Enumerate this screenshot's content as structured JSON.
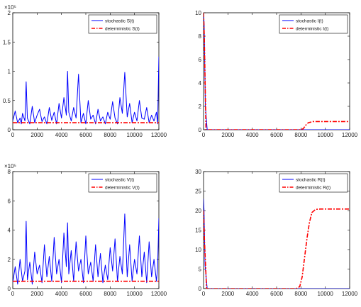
{
  "chart_data": [
    {
      "type": "line",
      "exponent": "×10⁵",
      "xlim": [
        0,
        12000
      ],
      "ylim": [
        0,
        2
      ],
      "xticks": [
        "0",
        "2000",
        "4000",
        "6000",
        "8000",
        "10000",
        "12000"
      ],
      "yticks": [
        "0",
        "0.5",
        "1",
        "1.5",
        "2"
      ],
      "legend_position": "top-right",
      "series": [
        {
          "name": "stochastic S(t)",
          "color": "#0000ff",
          "style": "solid",
          "x": [
            0,
            200,
            400,
            600,
            700,
            800,
            1000,
            1100,
            1200,
            1400,
            1600,
            1800,
            2000,
            2200,
            2400,
            2600,
            2800,
            3000,
            3200,
            3400,
            3600,
            3800,
            4000,
            4200,
            4400,
            4500,
            4600,
            4800,
            5000,
            5200,
            5400,
            5600,
            5800,
            6000,
            6200,
            6400,
            6600,
            6800,
            7000,
            7200,
            7400,
            7600,
            7800,
            8000,
            8200,
            8400,
            8600,
            8800,
            9000,
            9200,
            9400,
            9600,
            9800,
            10000,
            10200,
            10400,
            10600,
            10800,
            11000,
            11200,
            11400,
            11600,
            11800,
            11900,
            12000
          ],
          "values": [
            0.15,
            0.32,
            0.12,
            0.2,
            0.1,
            0.28,
            0.15,
            0.82,
            0.2,
            0.1,
            0.4,
            0.12,
            0.25,
            0.35,
            0.14,
            0.22,
            0.1,
            0.38,
            0.16,
            0.3,
            0.1,
            0.45,
            0.2,
            0.55,
            0.25,
            1.0,
            0.3,
            0.15,
            0.38,
            0.2,
            0.95,
            0.12,
            0.28,
            0.1,
            0.5,
            0.18,
            0.25,
            0.1,
            0.35,
            0.15,
            0.22,
            0.1,
            0.3,
            0.18,
            0.48,
            0.2,
            0.1,
            0.55,
            0.28,
            0.98,
            0.22,
            0.45,
            0.12,
            0.3,
            0.15,
            0.5,
            0.2,
            0.18,
            0.38,
            0.12,
            0.25,
            0.15,
            0.3,
            0.1,
            1.25
          ]
        },
        {
          "name": "deterministic S(t)",
          "color": "#ff0000",
          "style": "dashdot",
          "x": [
            0,
            12000
          ],
          "values": [
            0.12,
            0.12
          ]
        }
      ]
    },
    {
      "type": "line",
      "exponent": "",
      "xlim": [
        0,
        12000
      ],
      "ylim": [
        0,
        10
      ],
      "xticks": [
        "0",
        "2000",
        "4000",
        "6000",
        "8000",
        "10000",
        "12000"
      ],
      "yticks": [
        "0",
        "2",
        "4",
        "6",
        "8",
        "10"
      ],
      "legend_position": "top-right",
      "series": [
        {
          "name": "stochastic I(t)",
          "color": "#0000ff",
          "style": "solid",
          "x": [
            0,
            50,
            150,
            300,
            12000
          ],
          "values": [
            10,
            9,
            2,
            0,
            0
          ]
        },
        {
          "name": "deterministic I(t)",
          "color": "#ff0000",
          "style": "dashdot",
          "x": [
            0,
            60,
            200,
            8000,
            8200,
            8400,
            8600,
            9000,
            9500,
            12000
          ],
          "values": [
            10,
            8,
            0,
            0,
            0.1,
            0.4,
            0.6,
            0.7,
            0.7,
            0.7
          ]
        }
      ]
    },
    {
      "type": "line",
      "exponent": "×10⁵",
      "xlim": [
        0,
        12000
      ],
      "ylim": [
        0,
        8
      ],
      "xticks": [
        "0",
        "2000",
        "4000",
        "6000",
        "8000",
        "10000",
        "12000"
      ],
      "yticks": [
        "0",
        "2",
        "4",
        "6",
        "8"
      ],
      "legend_position": "top-right",
      "series": [
        {
          "name": "stochastic V(t)",
          "color": "#0000ff",
          "style": "solid",
          "x": [
            0,
            200,
            400,
            600,
            800,
            1000,
            1100,
            1200,
            1400,
            1600,
            1800,
            2000,
            2200,
            2400,
            2600,
            2800,
            3000,
            3200,
            3400,
            3600,
            3800,
            4000,
            4200,
            4400,
            4500,
            4600,
            4800,
            5000,
            5200,
            5400,
            5600,
            5800,
            6000,
            6200,
            6400,
            6600,
            6800,
            7000,
            7200,
            7400,
            7600,
            7800,
            8000,
            8200,
            8400,
            8600,
            8800,
            9000,
            9200,
            9400,
            9600,
            9800,
            10000,
            10200,
            10400,
            10600,
            10800,
            11000,
            11200,
            11400,
            11600,
            11800,
            11900,
            12000
          ],
          "values": [
            0.4,
            1.5,
            0.3,
            2.0,
            0.5,
            1.2,
            4.6,
            0.6,
            1.8,
            0.3,
            2.5,
            1.0,
            1.6,
            0.4,
            3.0,
            0.8,
            2.2,
            0.5,
            3.5,
            1.0,
            2.0,
            0.4,
            3.8,
            1.5,
            4.5,
            1.0,
            2.6,
            0.5,
            3.2,
            1.2,
            2.0,
            0.4,
            3.6,
            1.0,
            1.8,
            0.5,
            3.0,
            0.8,
            2.4,
            0.4,
            1.6,
            0.6,
            2.8,
            1.2,
            3.4,
            0.5,
            2.2,
            1.0,
            5.1,
            0.8,
            3.0,
            0.5,
            2.0,
            1.0,
            3.6,
            0.8,
            2.5,
            0.4,
            3.2,
            0.8,
            2.0,
            0.5,
            1.5,
            4.8
          ]
        },
        {
          "name": "deterministic V(t)",
          "color": "#ff0000",
          "style": "dashdot",
          "x": [
            0,
            12000
          ],
          "values": [
            0.5,
            0.5
          ]
        }
      ]
    },
    {
      "type": "line",
      "exponent": "",
      "xlim": [
        0,
        12000
      ],
      "ylim": [
        0,
        30
      ],
      "xticks": [
        "0",
        "2000",
        "4000",
        "6000",
        "8000",
        "10000",
        "12000"
      ],
      "yticks": [
        "0",
        "5",
        "10",
        "15",
        "20",
        "25",
        "30"
      ],
      "legend_position": "top-right",
      "series": [
        {
          "name": "stochastic R(t)",
          "color": "#0000ff",
          "style": "solid",
          "x": [
            0,
            40,
            120,
            300,
            12000
          ],
          "values": [
            23,
            20,
            6,
            0,
            0
          ]
        },
        {
          "name": "deterministic R(t)",
          "color": "#ff0000",
          "style": "dashdot",
          "x": [
            0,
            80,
            250,
            7600,
            7900,
            8100,
            8300,
            8500,
            8700,
            8900,
            9200,
            9600,
            12000
          ],
          "values": [
            20,
            12,
            0,
            0,
            0.5,
            3,
            8,
            13,
            17,
            19.5,
            20.3,
            20.4,
            20.4
          ]
        }
      ]
    }
  ]
}
